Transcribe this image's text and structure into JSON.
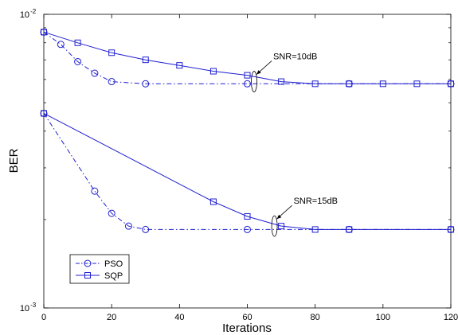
{
  "chart_data": {
    "type": "line",
    "xlabel": "Iterations",
    "ylabel": "BER",
    "xlim": [
      0,
      120
    ],
    "ylim": [
      0.001,
      0.01
    ],
    "yscale": "log",
    "grid": false,
    "legend_position": "bottom-left",
    "x_ticks": [
      "0",
      "20",
      "40",
      "60",
      "80",
      "100",
      "120"
    ],
    "y_ticks": [
      {
        "base": "10",
        "exp": "-2",
        "value": 0.01
      },
      {
        "base": "10",
        "exp": "-3",
        "value": 0.001
      }
    ],
    "line_color": "#1f1fd0",
    "series": [
      {
        "name": "PSO",
        "snr": "SNR=10dB",
        "marker": "circle",
        "line_style": "dashdot",
        "x": [
          0,
          5,
          10,
          15,
          20,
          30,
          60,
          90,
          120
        ],
        "y": [
          0.0087,
          0.0079,
          0.0069,
          0.0063,
          0.0059,
          0.0058,
          0.0058,
          0.0058,
          0.0058
        ]
      },
      {
        "name": "SQP",
        "snr": "SNR=10dB",
        "marker": "square",
        "line_style": "solid",
        "x": [
          0,
          10,
          20,
          30,
          40,
          50,
          60,
          70,
          80,
          90,
          100,
          110,
          120
        ],
        "y": [
          0.0087,
          0.008,
          0.0074,
          0.007,
          0.0067,
          0.0064,
          0.0062,
          0.0059,
          0.0058,
          0.0058,
          0.0058,
          0.0058,
          0.0058
        ]
      },
      {
        "name": "PSO",
        "snr": "SNR=15dB",
        "marker": "circle",
        "line_style": "dashdot",
        "x": [
          0,
          15,
          20,
          25,
          30,
          60,
          90,
          120
        ],
        "y": [
          0.0046,
          0.0025,
          0.0021,
          0.0019,
          0.00185,
          0.00185,
          0.00185,
          0.00185
        ]
      },
      {
        "name": "SQP",
        "snr": "SNR=15dB",
        "marker": "square",
        "line_style": "solid",
        "x": [
          0,
          50,
          60,
          70,
          80,
          90,
          120
        ],
        "y": [
          0.0046,
          0.0023,
          0.00205,
          0.0019,
          0.00185,
          0.00185,
          0.00185
        ]
      }
    ],
    "legend": [
      {
        "label": "PSO",
        "marker": "circle",
        "line_style": "dashdot"
      },
      {
        "label": "SQP",
        "marker": "square",
        "line_style": "solid"
      }
    ],
    "annotations": [
      {
        "text": "SNR=10dB",
        "target_x": 62,
        "target_y": 0.0059
      },
      {
        "text": "SNR=15dB",
        "target_x": 68,
        "target_y": 0.0019
      }
    ]
  }
}
